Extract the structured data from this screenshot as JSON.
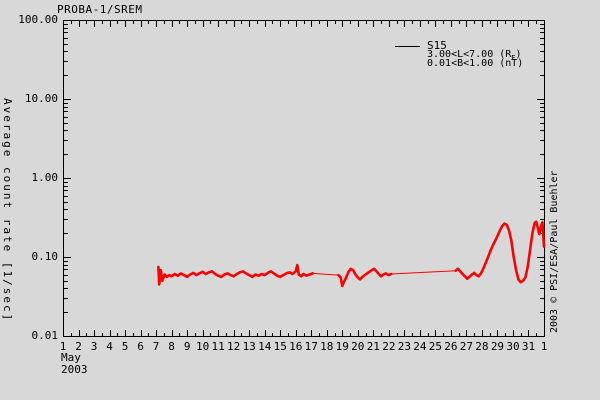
{
  "title": "PROBA-1/SREM",
  "axes": {
    "ylabel": "Average count rate [1/sec]",
    "x_month": "May",
    "x_year": "2003"
  },
  "legend": {
    "series_label": "S15",
    "l_range_pre": "3.00<L<7.00 (R",
    "l_range_sub": "E",
    "l_range_post": ")",
    "b_range": "0.01<B<1.00 (nT)"
  },
  "watermark": "2003 © PSI/ESA/Paul Buehler",
  "colors": {
    "background": "#d8d8d8",
    "axis": "#000000",
    "series": "#ff0000"
  },
  "chart_data": {
    "type": "line",
    "title": "PROBA-1/SREM",
    "xlabel": "May 2003",
    "ylabel": "Average count rate [1/sec]",
    "x_axis": {
      "min": 1,
      "max": 32,
      "tick_labels": [
        "1",
        "2",
        "3",
        "4",
        "5",
        "6",
        "7",
        "8",
        "9",
        "10",
        "11",
        "12",
        "13",
        "14",
        "15",
        "16",
        "17",
        "18",
        "19",
        "20",
        "21",
        "22",
        "23",
        "24",
        "25",
        "26",
        "27",
        "28",
        "29",
        "30",
        "31",
        "1"
      ],
      "minor_tick_step": 0.5
    },
    "y_axis": {
      "scale": "log",
      "min": 0.01,
      "max": 100,
      "tick_values": [
        100,
        10,
        1,
        0.1,
        0.01
      ],
      "tick_labels": [
        "100.00",
        "10.00",
        "1.00",
        "0.10",
        "0.01"
      ]
    },
    "legend_position": "top-right",
    "series": [
      {
        "name": "S15",
        "color": "#ff0000",
        "segments": [
          {
            "style": "thick",
            "points": [
              [
                7.15,
                0.075
              ],
              [
                7.2,
                0.045
              ],
              [
                7.3,
                0.068
              ],
              [
                7.4,
                0.05
              ],
              [
                7.55,
                0.06
              ],
              [
                7.7,
                0.056
              ],
              [
                7.85,
                0.059
              ],
              [
                8.0,
                0.057
              ],
              [
                8.2,
                0.061
              ],
              [
                8.4,
                0.058
              ],
              [
                8.6,
                0.062
              ],
              [
                8.8,
                0.059
              ],
              [
                9.0,
                0.056
              ],
              [
                9.2,
                0.06
              ],
              [
                9.4,
                0.063
              ],
              [
                9.6,
                0.059
              ],
              [
                9.8,
                0.062
              ],
              [
                10.0,
                0.065
              ],
              [
                10.2,
                0.061
              ],
              [
                10.4,
                0.064
              ],
              [
                10.6,
                0.066
              ],
              [
                10.8,
                0.061
              ],
              [
                11.0,
                0.058
              ],
              [
                11.2,
                0.056
              ],
              [
                11.4,
                0.06
              ],
              [
                11.6,
                0.062
              ],
              [
                11.8,
                0.059
              ],
              [
                12.0,
                0.057
              ],
              [
                12.2,
                0.061
              ],
              [
                12.4,
                0.064
              ],
              [
                12.6,
                0.066
              ],
              [
                12.8,
                0.062
              ],
              [
                13.0,
                0.059
              ],
              [
                13.2,
                0.056
              ],
              [
                13.4,
                0.06
              ],
              [
                13.6,
                0.058
              ],
              [
                13.8,
                0.061
              ],
              [
                14.0,
                0.059
              ],
              [
                14.2,
                0.063
              ],
              [
                14.4,
                0.066
              ],
              [
                14.6,
                0.062
              ],
              [
                14.8,
                0.058
              ],
              [
                15.0,
                0.056
              ],
              [
                15.2,
                0.059
              ],
              [
                15.4,
                0.062
              ],
              [
                15.6,
                0.064
              ],
              [
                15.8,
                0.061
              ],
              [
                16.0,
                0.066
              ],
              [
                16.1,
                0.079
              ],
              [
                16.2,
                0.06
              ],
              [
                16.35,
                0.057
              ],
              [
                16.5,
                0.061
              ],
              [
                16.7,
                0.058
              ],
              [
                16.9,
                0.06
              ],
              [
                17.1,
                0.062
              ]
            ]
          },
          {
            "style": "thin",
            "points": [
              [
                17.1,
                0.062
              ],
              [
                18.75,
                0.059
              ]
            ]
          },
          {
            "style": "thick",
            "points": [
              [
                18.75,
                0.059
              ],
              [
                18.9,
                0.055
              ],
              [
                19.0,
                0.043
              ],
              [
                19.1,
                0.048
              ],
              [
                19.25,
                0.055
              ],
              [
                19.4,
                0.065
              ],
              [
                19.55,
                0.071
              ],
              [
                19.7,
                0.068
              ],
              [
                19.85,
                0.06
              ],
              [
                20.0,
                0.055
              ],
              [
                20.15,
                0.052
              ],
              [
                20.3,
                0.056
              ],
              [
                20.5,
                0.06
              ],
              [
                20.7,
                0.064
              ],
              [
                20.9,
                0.068
              ],
              [
                21.05,
                0.071
              ],
              [
                21.2,
                0.066
              ],
              [
                21.35,
                0.061
              ],
              [
                21.5,
                0.057
              ],
              [
                21.65,
                0.06
              ],
              [
                21.8,
                0.062
              ],
              [
                22.0,
                0.059
              ],
              [
                22.15,
                0.061
              ]
            ]
          },
          {
            "style": "thin",
            "points": [
              [
                22.15,
                0.061
              ],
              [
                26.3,
                0.067
              ]
            ]
          },
          {
            "style": "thick",
            "points": [
              [
                26.3,
                0.067
              ],
              [
                26.45,
                0.071
              ],
              [
                26.6,
                0.066
              ],
              [
                26.75,
                0.061
              ],
              [
                26.9,
                0.057
              ],
              [
                27.05,
                0.053
              ],
              [
                27.2,
                0.056
              ],
              [
                27.35,
                0.06
              ],
              [
                27.5,
                0.063
              ],
              [
                27.65,
                0.059
              ],
              [
                27.8,
                0.057
              ],
              [
                27.95,
                0.063
              ],
              [
                28.1,
                0.072
              ],
              [
                28.25,
                0.085
              ],
              [
                28.4,
                0.1
              ],
              [
                28.55,
                0.12
              ],
              [
                28.7,
                0.14
              ],
              [
                28.85,
                0.16
              ],
              [
                29.0,
                0.185
              ],
              [
                29.15,
                0.215
              ],
              [
                29.3,
                0.245
              ],
              [
                29.45,
                0.265
              ],
              [
                29.6,
                0.255
              ],
              [
                29.75,
                0.215
              ],
              [
                29.9,
                0.16
              ],
              [
                30.05,
                0.1
              ],
              [
                30.2,
                0.068
              ],
              [
                30.35,
                0.052
              ],
              [
                30.5,
                0.048
              ],
              [
                30.65,
                0.05
              ],
              [
                30.8,
                0.055
              ],
              [
                30.95,
                0.075
              ],
              [
                31.1,
                0.12
              ],
              [
                31.25,
                0.2
              ],
              [
                31.4,
                0.27
              ],
              [
                31.5,
                0.28
              ],
              [
                31.6,
                0.235
              ],
              [
                31.7,
                0.195
              ],
              [
                31.8,
                0.24
              ],
              [
                31.9,
                0.275
              ],
              [
                32.0,
                0.135
              ]
            ]
          }
        ]
      }
    ]
  }
}
